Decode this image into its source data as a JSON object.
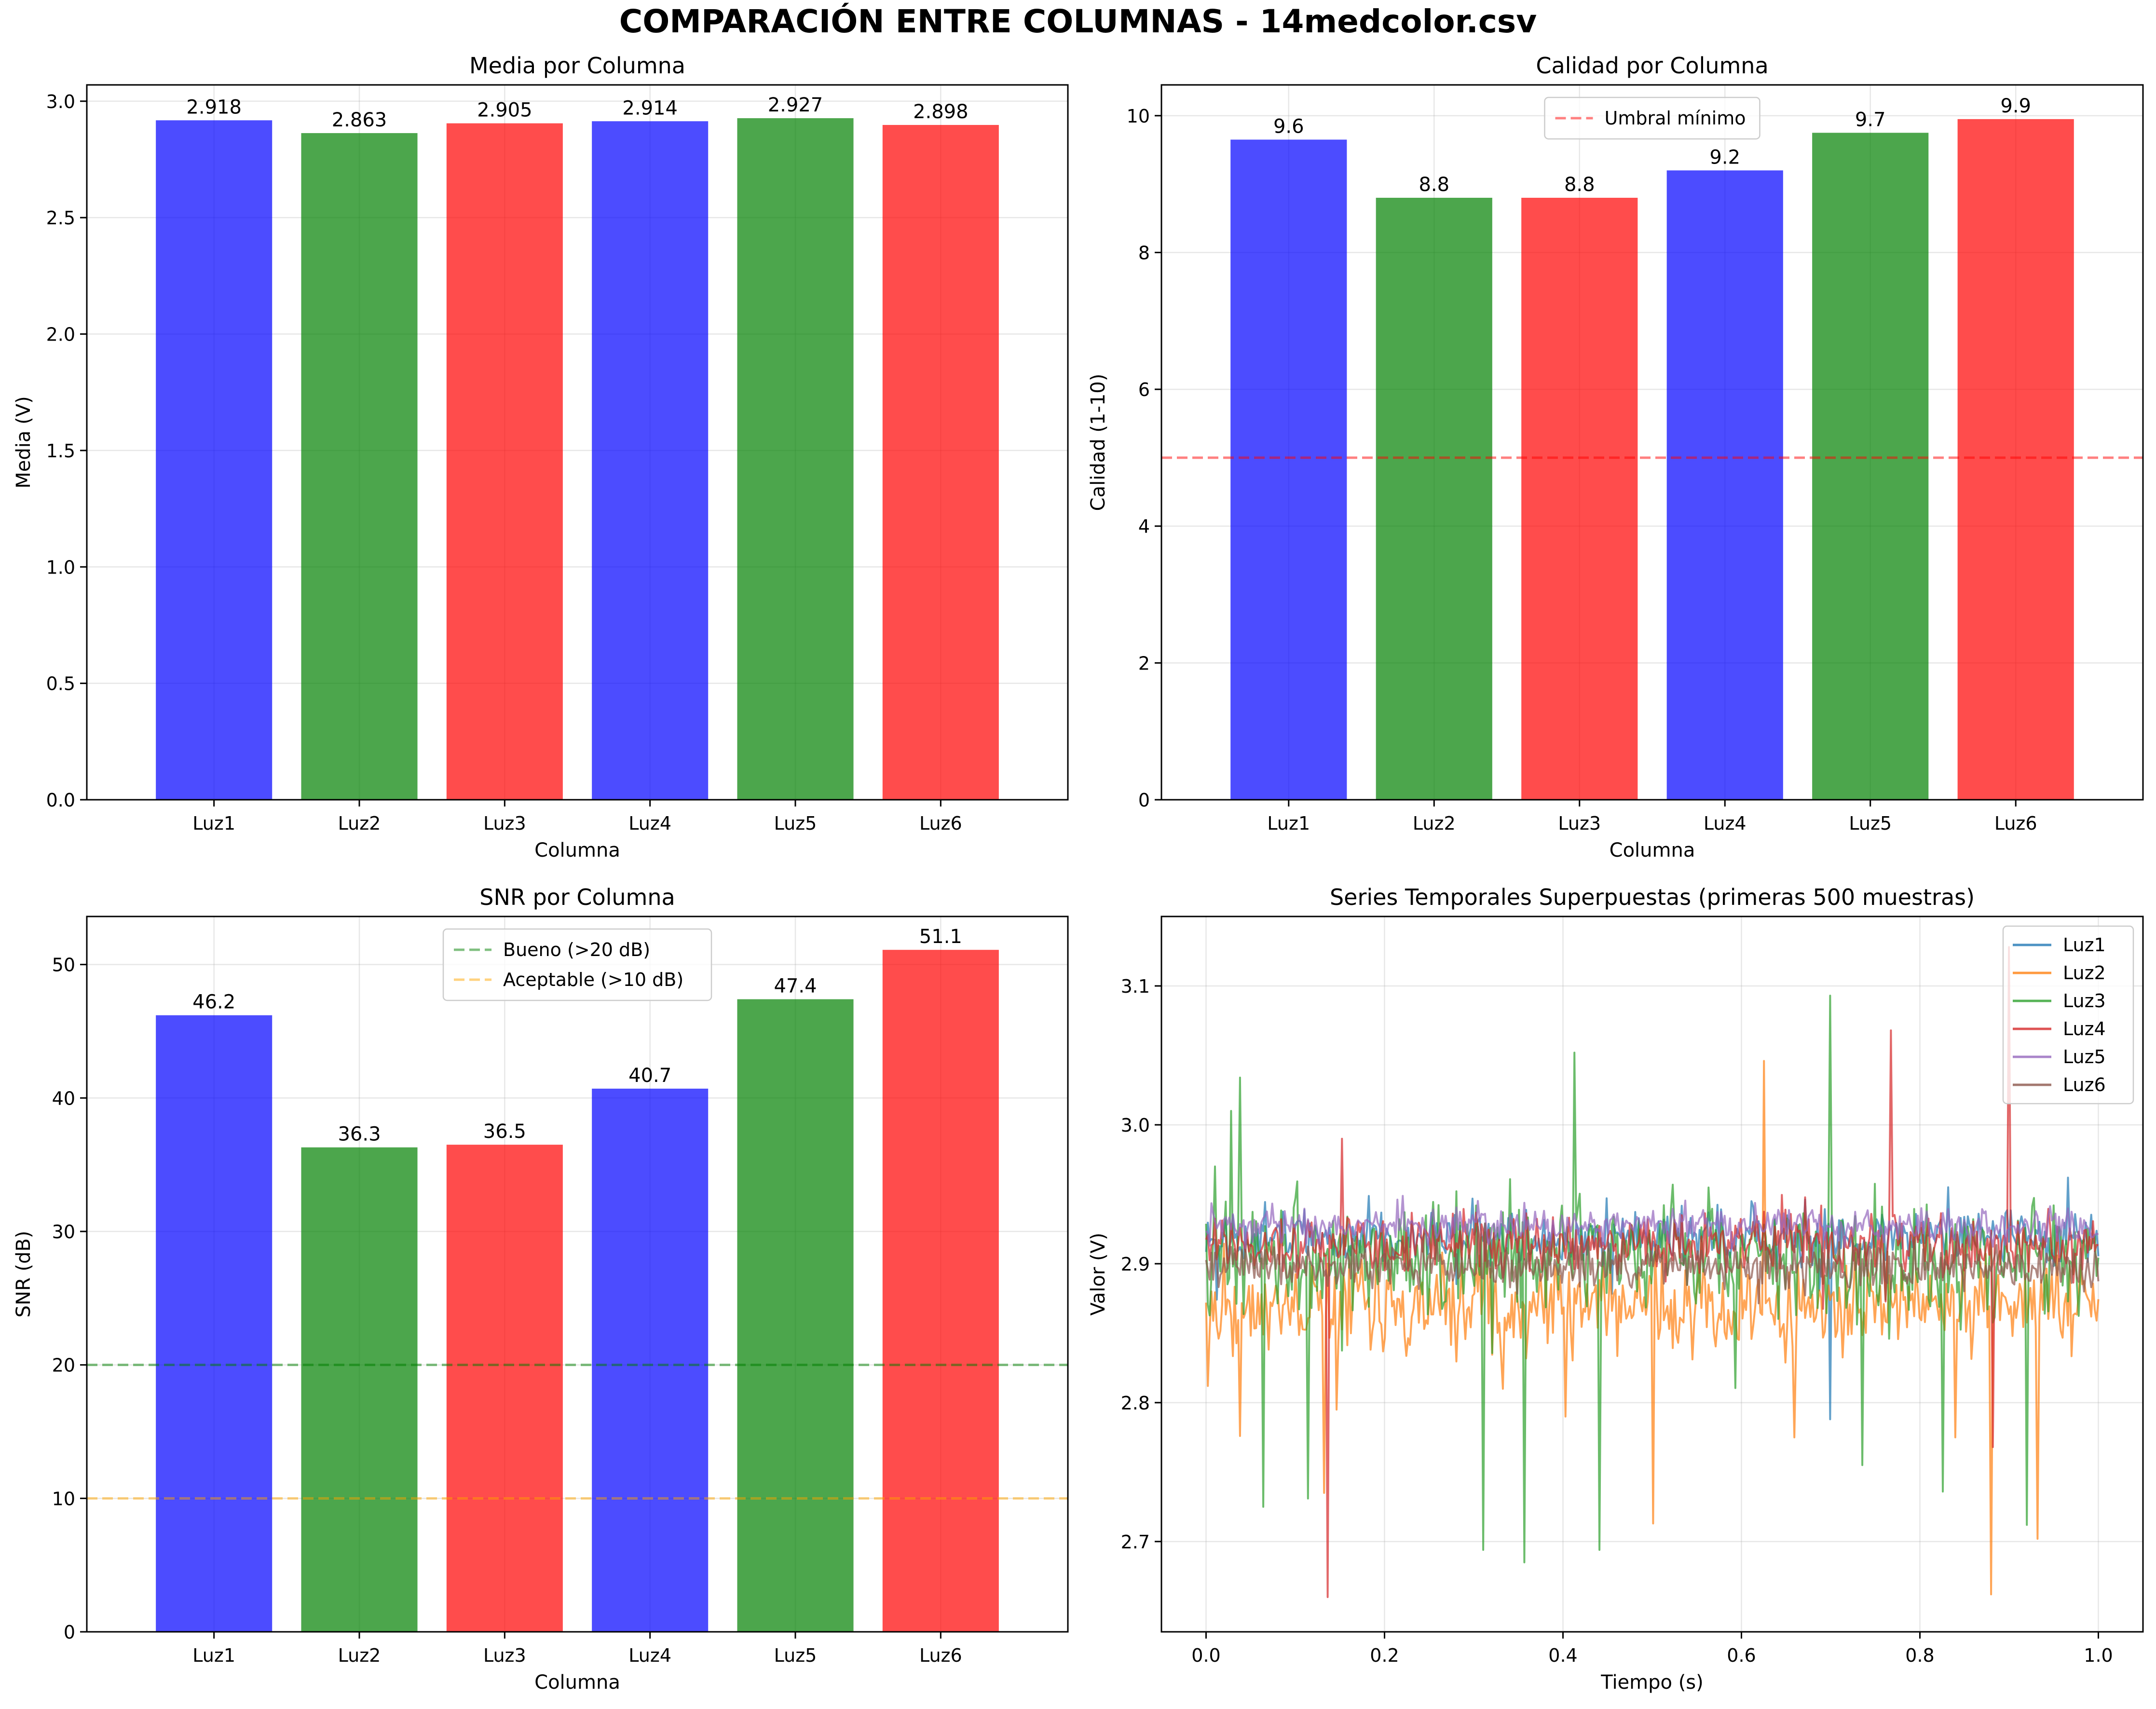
{
  "suptitle": "COMPARACIÓN ENTRE COLUMNAS - 14medcolor.csv",
  "colors": {
    "blue": "#0000ff",
    "green": "#008000",
    "red": "#ff0000",
    "bar_alpha": 0.7,
    "grid": "#b0b0b0",
    "series": [
      "#1f77b4",
      "#ff7f0e",
      "#2ca02c",
      "#d62728",
      "#9467bd",
      "#8c564b"
    ]
  },
  "chart_data": [
    {
      "type": "bar",
      "title": "Media por Columna",
      "xlabel": "Columna",
      "ylabel": "Media (V)",
      "categories": [
        "Luz1",
        "Luz2",
        "Luz3",
        "Luz4",
        "Luz5",
        "Luz6"
      ],
      "values": [
        2.918,
        2.863,
        2.905,
        2.914,
        2.927,
        2.898
      ],
      "value_labels": [
        "2.918",
        "2.863",
        "2.905",
        "2.914",
        "2.927",
        "2.898"
      ],
      "bar_colors": [
        "blue",
        "green",
        "red",
        "blue",
        "green",
        "red"
      ],
      "ylim": [
        0,
        3.07
      ],
      "yticks": [
        0,
        0.5,
        1.0,
        1.5,
        2.0,
        2.5,
        3.0
      ],
      "ytick_labels": [
        "0.0",
        "0.5",
        "1.0",
        "1.5",
        "2.0",
        "2.5",
        "3.0"
      ],
      "grid": true
    },
    {
      "type": "bar",
      "title": "Calidad por Columna",
      "xlabel": "Columna",
      "ylabel": "Calidad (1-10)",
      "categories": [
        "Luz1",
        "Luz2",
        "Luz3",
        "Luz4",
        "Luz5",
        "Luz6"
      ],
      "values": [
        9.65,
        8.8,
        8.8,
        9.2,
        9.75,
        9.95
      ],
      "value_labels": [
        "9.6",
        "8.8",
        "8.8",
        "9.2",
        "9.7",
        "9.9"
      ],
      "bar_colors": [
        "blue",
        "green",
        "red",
        "blue",
        "green",
        "red"
      ],
      "ylim": [
        0,
        10.45
      ],
      "yticks": [
        0,
        2,
        4,
        6,
        8,
        10
      ],
      "ytick_labels": [
        "0",
        "2",
        "4",
        "6",
        "8",
        "10"
      ],
      "hlines": [
        {
          "y": 5,
          "color": "#ff0000",
          "alpha": 0.5,
          "label": "Umbral mínimo"
        }
      ],
      "legend": "upper center",
      "grid": true
    },
    {
      "type": "bar",
      "title": "SNR por Columna",
      "xlabel": "Columna",
      "ylabel": "SNR (dB)",
      "categories": [
        "Luz1",
        "Luz2",
        "Luz3",
        "Luz4",
        "Luz5",
        "Luz6"
      ],
      "values": [
        46.2,
        36.3,
        36.5,
        40.7,
        47.4,
        51.1
      ],
      "value_labels": [
        "46.2",
        "36.3",
        "36.5",
        "40.7",
        "47.4",
        "51.1"
      ],
      "bar_colors": [
        "blue",
        "green",
        "red",
        "blue",
        "green",
        "red"
      ],
      "ylim": [
        0,
        53.6
      ],
      "yticks": [
        0,
        10,
        20,
        30,
        40,
        50
      ],
      "ytick_labels": [
        "0",
        "10",
        "20",
        "30",
        "40",
        "50"
      ],
      "hlines": [
        {
          "y": 20,
          "color": "#008000",
          "alpha": 0.5,
          "label": "Bueno (>20 dB)"
        },
        {
          "y": 10,
          "color": "#ffa500",
          "alpha": 0.5,
          "label": "Aceptable (>10 dB)"
        }
      ],
      "legend": "upper center",
      "grid": true
    },
    {
      "type": "line",
      "title": "Series Temporales Superpuestas (primeras 500 muestras)",
      "xlabel": "Tiempo (s)",
      "ylabel": "Valor (V)",
      "xlim": [
        -0.05,
        1.05
      ],
      "ylim": [
        2.635,
        3.15
      ],
      "xticks": [
        0,
        0.2,
        0.4,
        0.6,
        0.8,
        1.0
      ],
      "xtick_labels": [
        "0.0",
        "0.2",
        "0.4",
        "0.6",
        "0.8",
        "1.0"
      ],
      "yticks": [
        2.7,
        2.8,
        2.9,
        3.0,
        3.1
      ],
      "ytick_labels": [
        "2.7",
        "2.8",
        "2.9",
        "3.0",
        "3.1"
      ],
      "legend": "upper right",
      "grid": true,
      "n_samples": 500,
      "series": [
        {
          "name": "Luz1",
          "mean": 2.918,
          "noise": 0.012,
          "spikes": [
            [
              0.7,
              2.788
            ],
            [
              0.612,
              2.945
            ],
            [
              0.966,
              2.962
            ]
          ]
        },
        {
          "name": "Luz2",
          "mean": 2.87,
          "noise": 0.02,
          "spikes": [
            [
              0.002,
              2.812
            ],
            [
              0.038,
              2.776
            ],
            [
              0.132,
              2.735
            ],
            [
              0.146,
              2.795
            ],
            [
              0.332,
              2.81
            ],
            [
              0.402,
              2.79
            ],
            [
              0.5,
              2.713
            ],
            [
              0.626,
              3.046
            ],
            [
              0.66,
              2.775
            ],
            [
              0.88,
              2.662
            ],
            [
              0.932,
              2.702
            ],
            [
              0.84,
              2.775
            ]
          ]
        },
        {
          "name": "Luz3",
          "mean": 2.905,
          "noise": 0.024,
          "spikes": [
            [
              0.01,
              2.97
            ],
            [
              0.028,
              3.01
            ],
            [
              0.038,
              3.034
            ],
            [
              0.064,
              2.725
            ],
            [
              0.114,
              2.731
            ],
            [
              0.31,
              2.694
            ],
            [
              0.356,
              2.685
            ],
            [
              0.412,
              3.052
            ],
            [
              0.44,
              2.694
            ],
            [
              0.7,
              3.093
            ],
            [
              0.736,
              2.755
            ],
            [
              0.826,
              2.736
            ],
            [
              0.92,
              2.712
            ],
            [
              0.95,
              2.942
            ]
          ]
        },
        {
          "name": "Luz4",
          "mean": 2.914,
          "noise": 0.012,
          "spikes": [
            [
              0.136,
              2.66
            ],
            [
              0.152,
              2.99
            ],
            [
              0.768,
              3.068
            ],
            [
              0.882,
              2.768
            ],
            [
              0.9,
              3.128
            ]
          ]
        },
        {
          "name": "Luz5",
          "mean": 2.927,
          "noise": 0.008,
          "spikes": []
        },
        {
          "name": "Luz6",
          "mean": 2.898,
          "noise": 0.01,
          "spikes": []
        }
      ]
    }
  ]
}
